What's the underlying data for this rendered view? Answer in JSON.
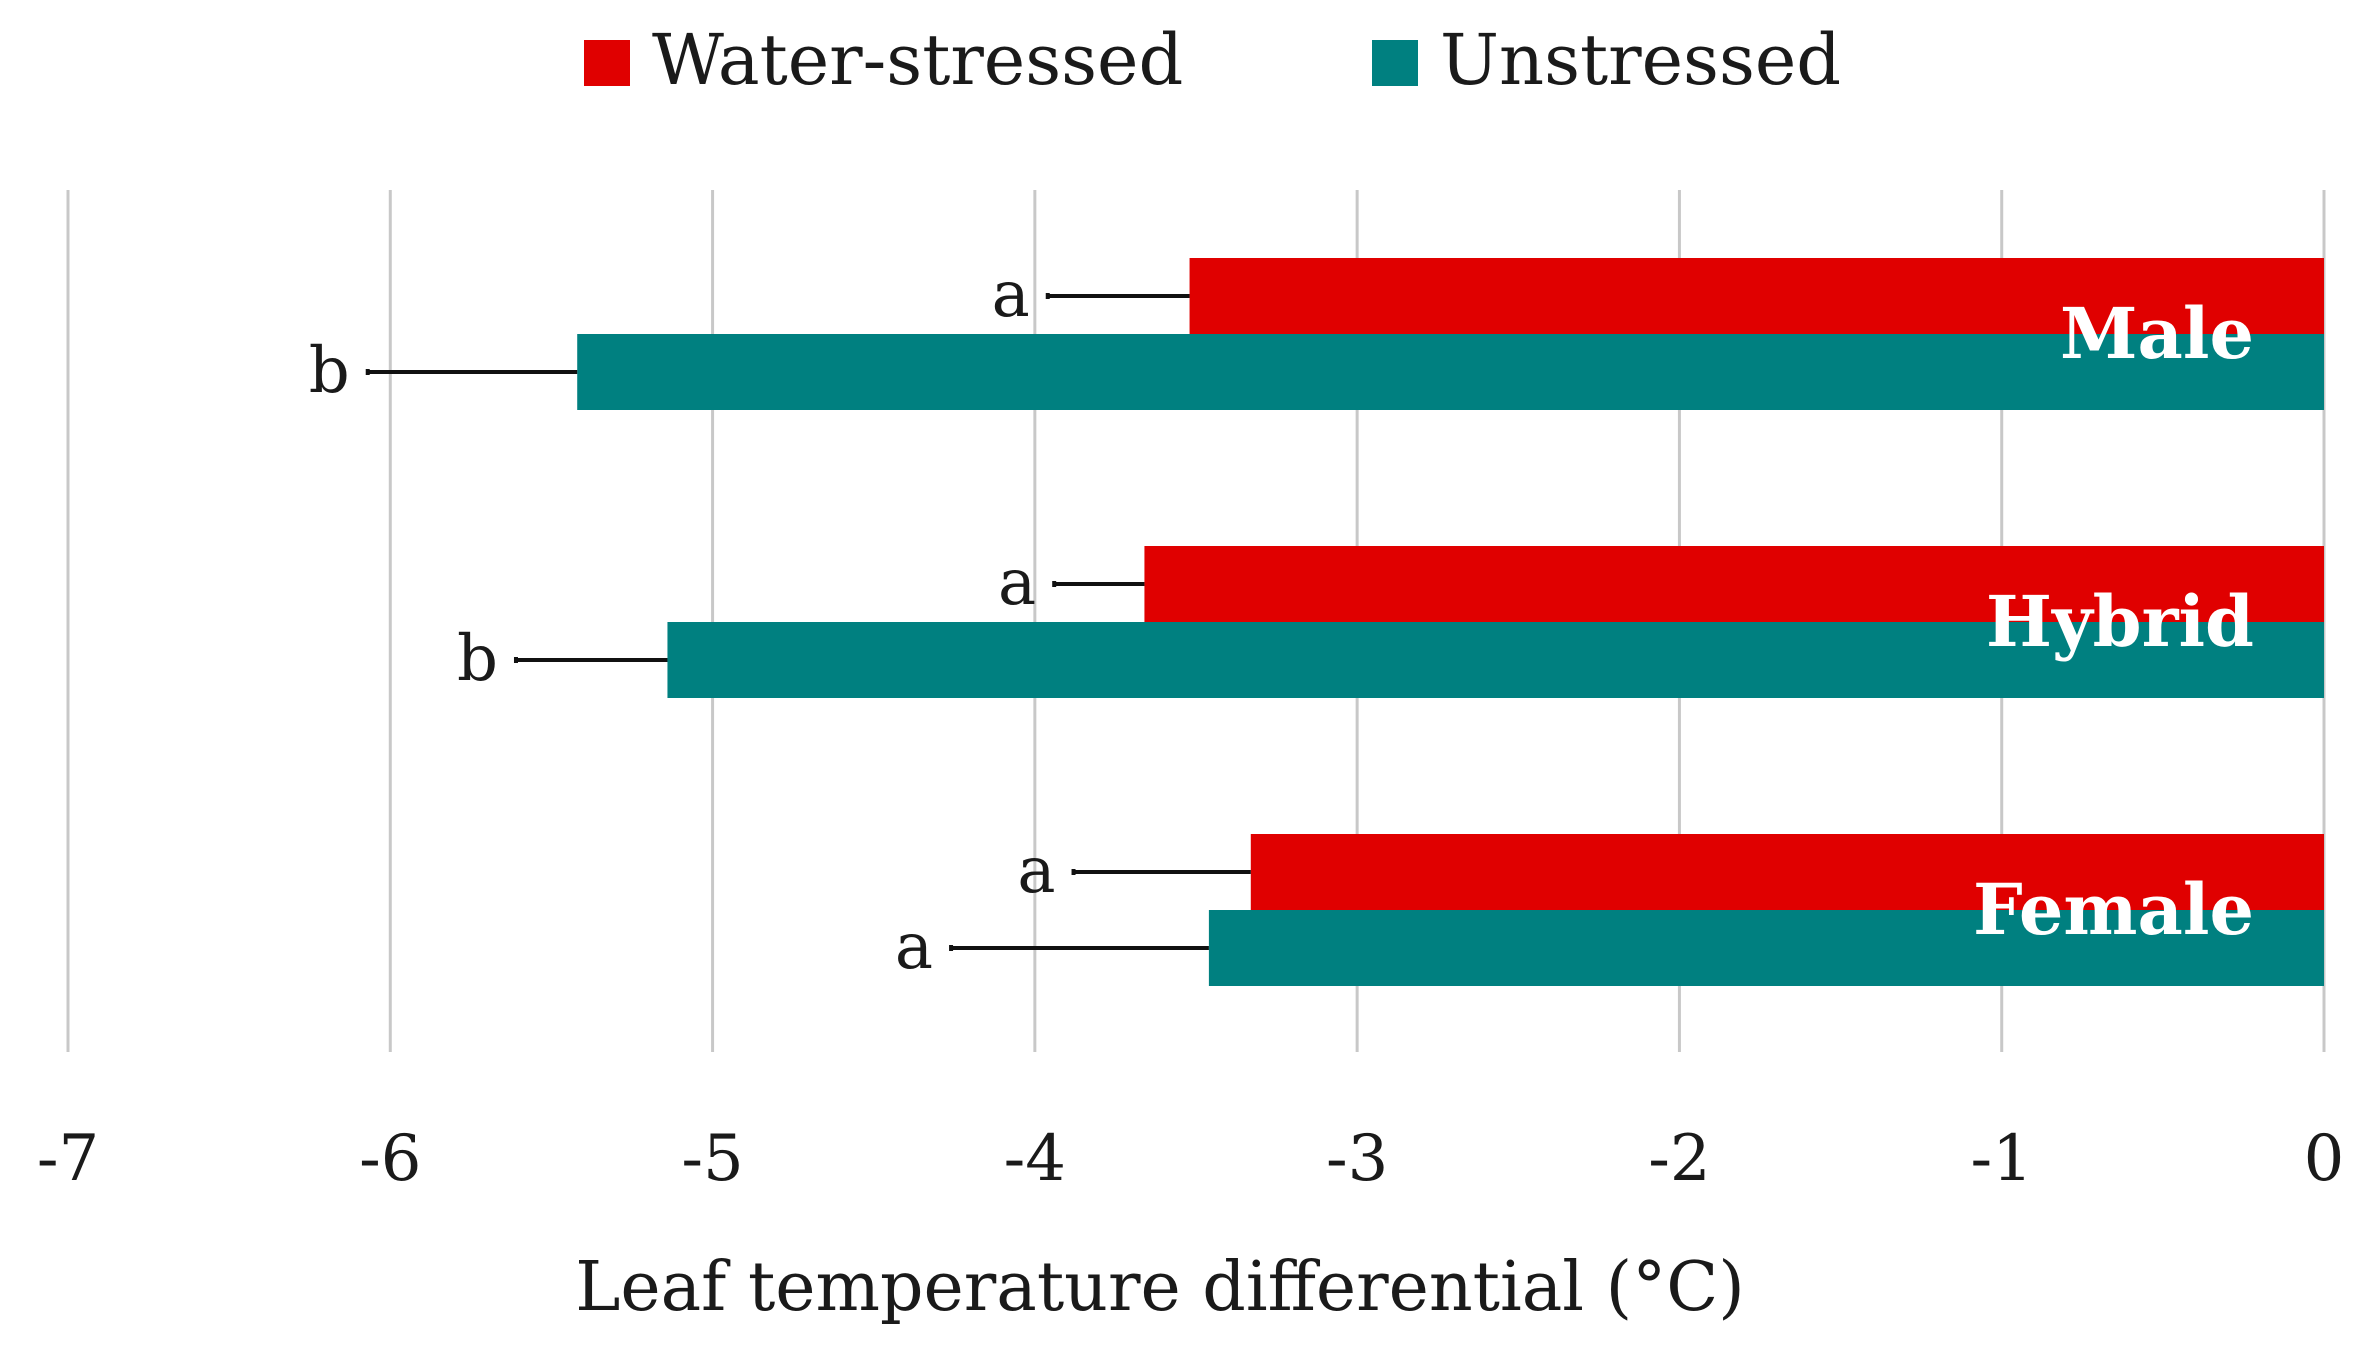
{
  "chart_data": {
    "type": "bar",
    "orientation": "horizontal",
    "categories": [
      "Male",
      "Hybrid",
      "Female"
    ],
    "series": [
      {
        "name": "Water-stressed",
        "color": "#e00000",
        "values": [
          -3.52,
          -3.66,
          -3.33
        ],
        "errors": [
          0.44,
          0.28,
          0.55
        ],
        "letters": [
          "a",
          "a",
          "a"
        ]
      },
      {
        "name": "Unstressed",
        "color": "#008080",
        "values": [
          -5.42,
          -5.14,
          -3.46
        ],
        "errors": [
          0.65,
          0.47,
          0.8
        ],
        "letters": [
          "b",
          "b",
          "a"
        ]
      }
    ],
    "xlim": [
      -7,
      0
    ],
    "xticks": [
      "-7",
      "-6",
      "-5",
      "-4",
      "-3",
      "-2",
      "-1",
      "0"
    ],
    "xlabel": "Leaf temperature differential (°C)",
    "grid": true,
    "legend_position": "top"
  }
}
